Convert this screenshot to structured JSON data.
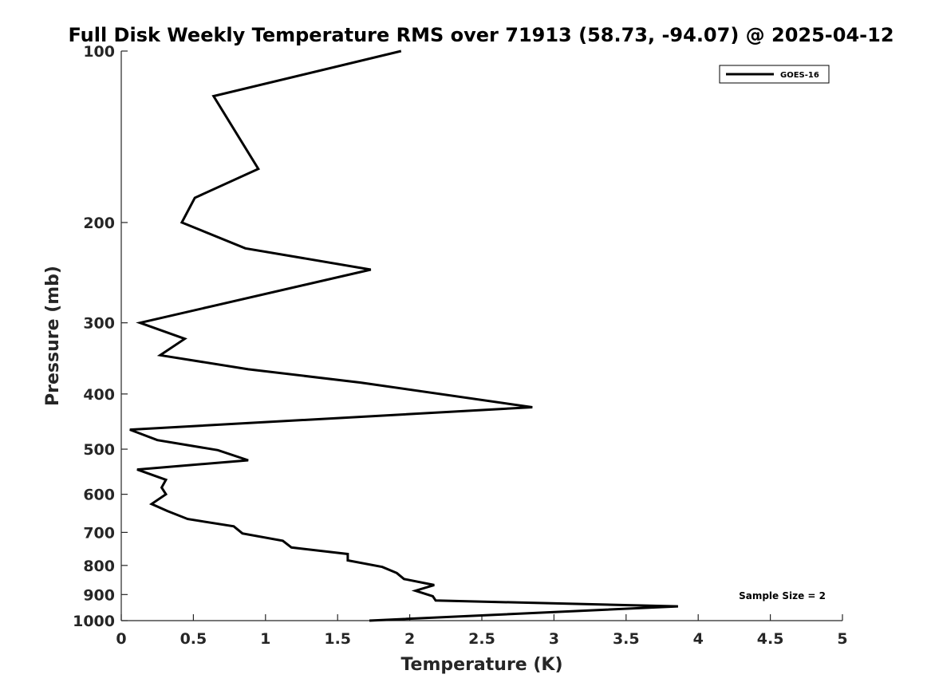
{
  "chart_data": {
    "type": "line",
    "title": "Full Disk Weekly Temperature RMS over 71913 (58.73, -94.07) @ 2025-04-12",
    "xlabel": "Temperature (K)",
    "ylabel": "Pressure (mb)",
    "xlim": [
      0,
      5
    ],
    "ylim": [
      100,
      1000
    ],
    "y_scale": "log",
    "y_reversed": true,
    "xticks": [
      0,
      0.5,
      1,
      1.5,
      2,
      2.5,
      3,
      3.5,
      4,
      4.5,
      5
    ],
    "xtick_labels": [
      "0",
      "0.5",
      "1",
      "1.5",
      "2",
      "2.5",
      "3",
      "3.5",
      "4",
      "4.5",
      "5"
    ],
    "yticks": [
      100,
      200,
      300,
      400,
      500,
      600,
      700,
      800,
      900,
      1000
    ],
    "ytick_labels": [
      "100",
      "200",
      "300",
      "400",
      "500",
      "600",
      "700",
      "800",
      "900",
      "1000"
    ],
    "legend_position": "top-right",
    "annotation": "Sample Size = 2",
    "line_color": "#000000",
    "series": [
      {
        "name": "GOES-16",
        "points": [
          {
            "x": 1.94,
            "p": 100
          },
          {
            "x": 0.64,
            "p": 120
          },
          {
            "x": 0.95,
            "p": 161
          },
          {
            "x": 0.51,
            "p": 181
          },
          {
            "x": 0.42,
            "p": 200
          },
          {
            "x": 0.86,
            "p": 222
          },
          {
            "x": 1.73,
            "p": 242
          },
          {
            "x": 0.13,
            "p": 300
          },
          {
            "x": 0.44,
            "p": 320
          },
          {
            "x": 0.27,
            "p": 342
          },
          {
            "x": 0.88,
            "p": 362
          },
          {
            "x": 1.66,
            "p": 382
          },
          {
            "x": 2.85,
            "p": 422
          },
          {
            "x": 0.06,
            "p": 462
          },
          {
            "x": 0.25,
            "p": 482
          },
          {
            "x": 0.67,
            "p": 502
          },
          {
            "x": 0.88,
            "p": 523
          },
          {
            "x": 0.11,
            "p": 543
          },
          {
            "x": 0.31,
            "p": 566
          },
          {
            "x": 0.28,
            "p": 584
          },
          {
            "x": 0.31,
            "p": 600
          },
          {
            "x": 0.21,
            "p": 624
          },
          {
            "x": 0.32,
            "p": 642
          },
          {
            "x": 0.46,
            "p": 663
          },
          {
            "x": 0.78,
            "p": 683
          },
          {
            "x": 0.84,
            "p": 703
          },
          {
            "x": 1.12,
            "p": 724
          },
          {
            "x": 1.18,
            "p": 744
          },
          {
            "x": 1.57,
            "p": 764
          },
          {
            "x": 1.57,
            "p": 784
          },
          {
            "x": 1.81,
            "p": 805
          },
          {
            "x": 1.91,
            "p": 825
          },
          {
            "x": 1.96,
            "p": 845
          },
          {
            "x": 2.17,
            "p": 866
          },
          {
            "x": 2.04,
            "p": 886
          },
          {
            "x": 2.16,
            "p": 906
          },
          {
            "x": 2.18,
            "p": 922
          },
          {
            "x": 3.86,
            "p": 944
          },
          {
            "x": 1.72,
            "p": 1000
          }
        ]
      }
    ]
  }
}
